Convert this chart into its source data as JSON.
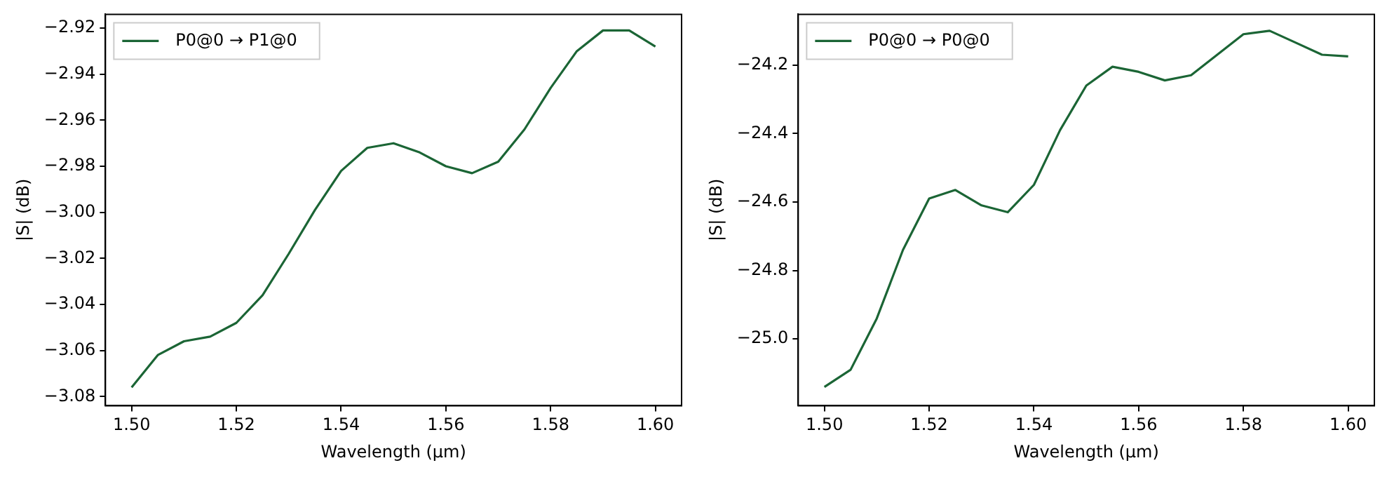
{
  "chart_data": [
    {
      "type": "line",
      "xlabel": "Wavelength (µm)",
      "ylabel": "|S| (dB)",
      "legend": "top left",
      "grid": false,
      "marker": "none",
      "line_style": "solid",
      "x": [
        1.5,
        1.505,
        1.51,
        1.515,
        1.52,
        1.525,
        1.53,
        1.535,
        1.54,
        1.545,
        1.55,
        1.555,
        1.56,
        1.565,
        1.57,
        1.575,
        1.58,
        1.585,
        1.59,
        1.595,
        1.6
      ],
      "series": [
        {
          "name": "P0@0 → P1@0",
          "color": "#1b6535",
          "values": [
            -3.076,
            -3.062,
            -3.056,
            -3.054,
            -3.048,
            -3.036,
            -3.018,
            -2.999,
            -2.982,
            -2.972,
            -2.97,
            -2.974,
            -2.98,
            -2.983,
            -2.978,
            -2.964,
            -2.946,
            -2.93,
            -2.921,
            -2.921,
            -2.928
          ]
        }
      ],
      "xlim": [
        1.495,
        1.605
      ],
      "xticks": [
        {
          "value": 1.5,
          "label": "1.50"
        },
        {
          "value": 1.52,
          "label": "1.52"
        },
        {
          "value": 1.54,
          "label": "1.54"
        },
        {
          "value": 1.56,
          "label": "1.56"
        },
        {
          "value": 1.58,
          "label": "1.58"
        },
        {
          "value": 1.6,
          "label": "1.60"
        }
      ],
      "ylim": [
        -3.084,
        -2.914
      ],
      "yticks": [
        {
          "value": -3.08,
          "label": "−3.08"
        },
        {
          "value": -3.06,
          "label": "−3.06"
        },
        {
          "value": -3.04,
          "label": "−3.04"
        },
        {
          "value": -3.02,
          "label": "−3.02"
        },
        {
          "value": -3.0,
          "label": "−3.00"
        },
        {
          "value": -2.98,
          "label": "−2.98"
        },
        {
          "value": -2.96,
          "label": "−2.96"
        },
        {
          "value": -2.94,
          "label": "−2.94"
        },
        {
          "value": -2.92,
          "label": "−2.92"
        }
      ]
    },
    {
      "type": "line",
      "xlabel": "Wavelength (µm)",
      "ylabel": "|S| (dB)",
      "legend": "top left",
      "grid": false,
      "marker": "none",
      "line_style": "solid",
      "x": [
        1.5,
        1.505,
        1.51,
        1.515,
        1.52,
        1.525,
        1.53,
        1.535,
        1.54,
        1.545,
        1.55,
        1.555,
        1.56,
        1.565,
        1.57,
        1.575,
        1.58,
        1.585,
        1.59,
        1.595,
        1.6
      ],
      "series": [
        {
          "name": "P0@0 → P0@0",
          "color": "#1b6535",
          "values": [
            -25.14,
            -25.09,
            -24.94,
            -24.74,
            -24.59,
            -24.565,
            -24.61,
            -24.63,
            -24.55,
            -24.39,
            -24.26,
            -24.205,
            -24.22,
            -24.245,
            -24.23,
            -24.17,
            -24.11,
            -24.1,
            -24.135,
            -24.17,
            -24.175
          ]
        }
      ],
      "xlim": [
        1.495,
        1.605
      ],
      "xticks": [
        {
          "value": 1.5,
          "label": "1.50"
        },
        {
          "value": 1.52,
          "label": "1.52"
        },
        {
          "value": 1.54,
          "label": "1.54"
        },
        {
          "value": 1.56,
          "label": "1.56"
        },
        {
          "value": 1.58,
          "label": "1.58"
        },
        {
          "value": 1.6,
          "label": "1.60"
        }
      ],
      "ylim": [
        -25.195,
        -24.052
      ],
      "yticks": [
        {
          "value": -25.0,
          "label": "−25.0"
        },
        {
          "value": -24.8,
          "label": "−24.8"
        },
        {
          "value": -24.6,
          "label": "−24.6"
        },
        {
          "value": -24.4,
          "label": "−24.4"
        },
        {
          "value": -24.2,
          "label": "−24.2"
        }
      ]
    }
  ]
}
